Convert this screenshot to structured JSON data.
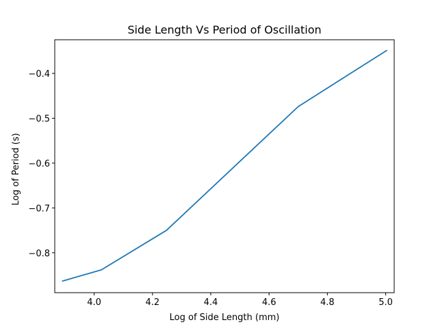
{
  "chart_data": {
    "type": "line",
    "title": "Side Length Vs Period of Oscillation",
    "xlabel": "Log of Side Length (mm)",
    "ylabel": "Log of Period (s)",
    "xlim": [
      3.8648,
      5.0292
    ],
    "ylim": [
      -0.889,
      -0.325
    ],
    "xticks": [
      4.0,
      4.2,
      4.4,
      4.6,
      4.8,
      5.0
    ],
    "xtick_labels": [
      "4.0",
      "4.2",
      "4.4",
      "4.6",
      "4.8",
      "5.0"
    ],
    "yticks": [
      -0.8,
      -0.7,
      -0.6,
      -0.5,
      -0.4
    ],
    "ytick_labels": [
      "−0.8",
      "−0.7",
      "−0.6",
      "−0.5",
      "−0.4"
    ],
    "grid": false,
    "series": [
      {
        "color": "#1f77b4",
        "x": [
          3.892,
          4.025,
          4.248,
          4.7,
          5.003
        ],
        "y": [
          -0.863,
          -0.838,
          -0.75,
          -0.474,
          -0.349
        ]
      }
    ]
  }
}
